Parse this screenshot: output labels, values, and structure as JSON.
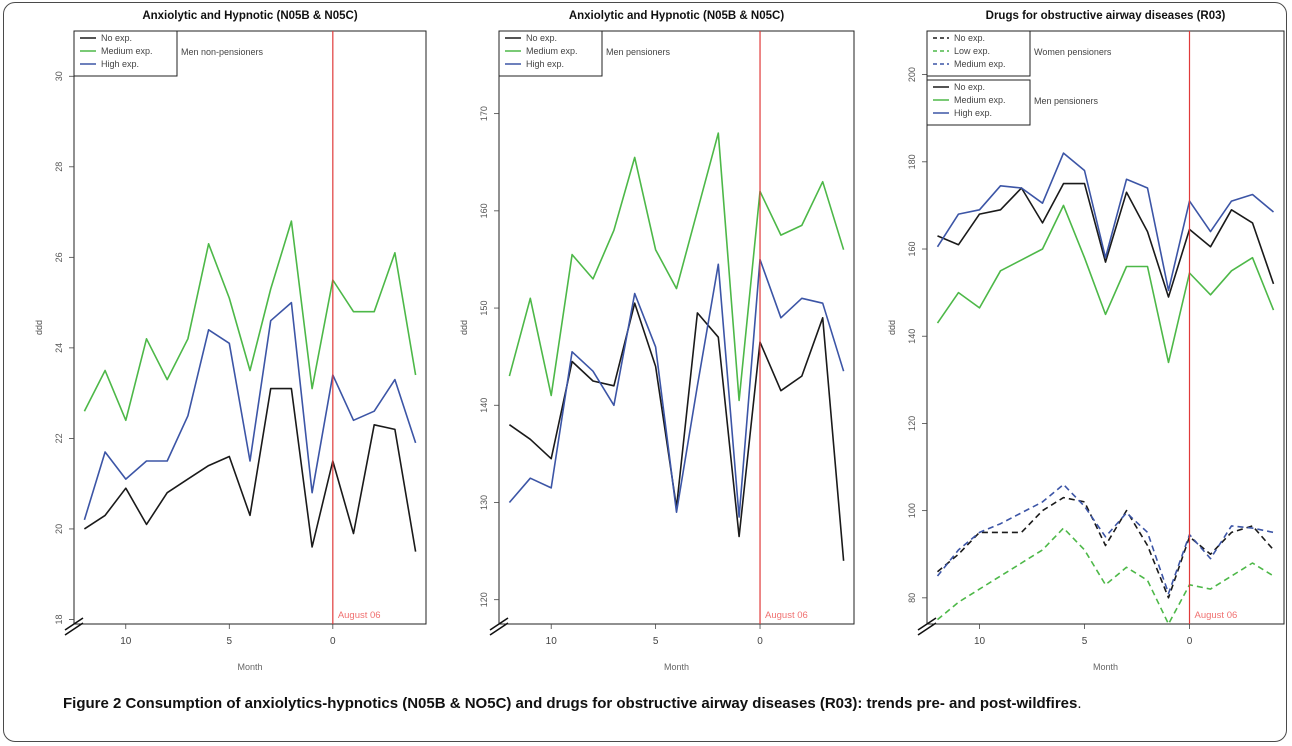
{
  "colors": {
    "black": "#1a1a1a",
    "green": "#4db848",
    "blue": "#3c55a6",
    "event_line": "#e03a3a",
    "event_label": "#f07070"
  },
  "caption": {
    "label": "Figure 2",
    "text": "Consumption of anxiolytics-hypnotics (N05B & NO5C) and drugs for obstructive airway diseases (R03): trends pre- and post-wildfires",
    "end": "."
  },
  "chart_data": [
    {
      "type": "line",
      "title": "Anxiolytic and Hypnotic (N05B & N05C)",
      "xlabel": "Month",
      "ylabel": "ddd",
      "xlim": [
        12.5,
        -4.5
      ],
      "ylim": [
        17.9,
        31.0
      ],
      "x_ticks": [
        10,
        5,
        0
      ],
      "x_tick_labels": [
        "10",
        "5",
        "0"
      ],
      "y_ticks": [
        18,
        20,
        22,
        24,
        26,
        28,
        30
      ],
      "y_tick_labels": [
        "18",
        "20",
        "22",
        "24",
        "26",
        "28",
        "30"
      ],
      "event": {
        "x": 0,
        "label": "August 06"
      },
      "legend": {
        "position": "top-left",
        "group_label": "Men non-pensioners"
      },
      "x": [
        12,
        11,
        10,
        9,
        8,
        7,
        6,
        5,
        4,
        3,
        2,
        1,
        0,
        -1,
        -2,
        -3,
        -4
      ],
      "series": [
        {
          "name": "No exp.",
          "color": "black",
          "dashed": false,
          "values": [
            20.0,
            20.3,
            20.9,
            20.1,
            20.8,
            21.1,
            21.4,
            21.6,
            20.3,
            23.1,
            23.1,
            19.6,
            21.5,
            19.9,
            22.3,
            22.2,
            19.5
          ]
        },
        {
          "name": "Medium exp.",
          "color": "green",
          "dashed": false,
          "values": [
            22.6,
            23.5,
            22.4,
            24.2,
            23.3,
            24.2,
            26.3,
            25.1,
            23.5,
            25.3,
            26.8,
            23.1,
            25.5,
            24.8,
            24.8,
            26.1,
            23.4
          ]
        },
        {
          "name": "High exp.",
          "color": "blue",
          "dashed": false,
          "values": [
            20.2,
            21.7,
            21.1,
            21.5,
            21.5,
            22.5,
            24.4,
            24.1,
            21.5,
            24.6,
            25.0,
            20.8,
            23.4,
            22.4,
            22.6,
            23.3,
            21.9
          ]
        }
      ]
    },
    {
      "type": "line",
      "title": "Anxiolytic and Hypnotic (N05B & N05C)",
      "xlabel": "Month",
      "ylabel": "ddd",
      "xlim": [
        12.5,
        -4.5
      ],
      "ylim": [
        117.5,
        178.5
      ],
      "x_ticks": [
        10,
        5,
        0
      ],
      "x_tick_labels": [
        "10",
        "5",
        "0"
      ],
      "y_ticks": [
        120,
        130,
        140,
        150,
        160,
        170
      ],
      "y_tick_labels": [
        "120",
        "130",
        "140",
        "150",
        "160",
        "170"
      ],
      "event": {
        "x": 0,
        "label": "August 06"
      },
      "legend": {
        "position": "top-left",
        "group_label": "Men pensioners"
      },
      "x": [
        12,
        11,
        10,
        9,
        8,
        7,
        6,
        5,
        4,
        3,
        2,
        1,
        0,
        -1,
        -2,
        -3,
        -4
      ],
      "series": [
        {
          "name": "No exp.",
          "color": "black",
          "dashed": false,
          "values": [
            138.0,
            136.5,
            134.5,
            144.5,
            142.5,
            142.0,
            150.5,
            144.0,
            129.5,
            149.5,
            147.0,
            126.5,
            146.5,
            141.5,
            143.0,
            149.0,
            124.0
          ]
        },
        {
          "name": "Medium exp.",
          "color": "green",
          "dashed": false,
          "values": [
            143.0,
            151.0,
            141.0,
            155.5,
            153.0,
            158.0,
            165.5,
            156.0,
            152.0,
            160.0,
            168.0,
            140.5,
            162.0,
            157.5,
            158.5,
            163.0,
            156.0
          ]
        },
        {
          "name": "High exp.",
          "color": "blue",
          "dashed": false,
          "values": [
            130.0,
            132.5,
            131.5,
            145.5,
            143.5,
            140.0,
            151.5,
            146.0,
            129.0,
            142.0,
            154.5,
            128.5,
            155.0,
            149.0,
            151.0,
            150.5,
            143.5
          ]
        }
      ]
    },
    {
      "type": "line",
      "title": "Drugs for obstructive airway diseases (R03)",
      "xlabel": "Month",
      "ylabel": "ddd",
      "xlim": [
        12.5,
        -4.5
      ],
      "ylim": [
        74.0,
        210.0
      ],
      "x_ticks": [
        10,
        5,
        0
      ],
      "x_tick_labels": [
        "10",
        "5",
        "0"
      ],
      "y_ticks": [
        80,
        100,
        120,
        140,
        160,
        180,
        200
      ],
      "y_tick_labels": [
        "80",
        "100",
        "120",
        "140",
        "160",
        "180",
        "200"
      ],
      "event": {
        "x": 0,
        "label": "August 06"
      },
      "legends": [
        {
          "position": "top-left",
          "group_label": "Women pensioners",
          "entries": [
            "No exp.",
            "Low exp.",
            "Medium exp."
          ],
          "dashed": true
        },
        {
          "position": "top-left",
          "group_label": "Men pensioners",
          "entries": [
            "No exp.",
            "Medium exp.",
            "High exp."
          ],
          "dashed": false
        }
      ],
      "x": [
        12,
        11,
        10,
        9,
        8,
        7,
        6,
        5,
        4,
        3,
        2,
        1,
        0,
        -1,
        -2,
        -3,
        -4
      ],
      "series": [
        {
          "name": "No exp.",
          "group": "Women pensioners",
          "color": "black",
          "dashed": true,
          "values": [
            86.0,
            90.0,
            95.0,
            95.0,
            95.0,
            100.0,
            103.0,
            102.0,
            92.0,
            100.0,
            92.0,
            80.0,
            94.0,
            90.0,
            95.0,
            96.5,
            91.0
          ]
        },
        {
          "name": "Low exp.",
          "group": "Women pensioners",
          "color": "green",
          "dashed": true,
          "values": [
            75.0,
            79.0,
            82.0,
            85.0,
            88.0,
            91.0,
            96.0,
            91.0,
            83.0,
            87.0,
            84.0,
            74.0,
            83.0,
            82.0,
            85.0,
            88.0,
            85.0
          ]
        },
        {
          "name": "Medium exp.",
          "group": "Women pensioners",
          "color": "blue",
          "dashed": true,
          "values": [
            85.0,
            91.0,
            95.0,
            97.0,
            99.5,
            102.0,
            106.0,
            101.0,
            94.0,
            99.5,
            95.0,
            81.0,
            94.5,
            89.0,
            96.5,
            96.0,
            95.0
          ]
        },
        {
          "name": "No exp.",
          "group": "Men pensioners",
          "color": "black",
          "dashed": false,
          "values": [
            163.0,
            161.0,
            168.0,
            169.0,
            174.0,
            166.0,
            175.0,
            175.0,
            157.0,
            173.0,
            164.0,
            149.0,
            164.5,
            160.5,
            169.0,
            166.0,
            152.0
          ]
        },
        {
          "name": "Medium exp.",
          "group": "Men pensioners",
          "color": "green",
          "dashed": false,
          "values": [
            143.0,
            150.0,
            146.5,
            155.0,
            157.5,
            160.0,
            170.0,
            158.0,
            145.0,
            156.0,
            156.0,
            134.0,
            154.5,
            149.5,
            155.0,
            158.0,
            146.0
          ]
        },
        {
          "name": "High exp.",
          "group": "Men pensioners",
          "color": "blue",
          "dashed": false,
          "values": [
            160.5,
            168.0,
            169.0,
            174.5,
            174.0,
            170.5,
            182.0,
            178.0,
            158.0,
            176.0,
            174.0,
            150.5,
            171.0,
            164.0,
            171.0,
            172.5,
            168.5
          ]
        }
      ]
    }
  ]
}
